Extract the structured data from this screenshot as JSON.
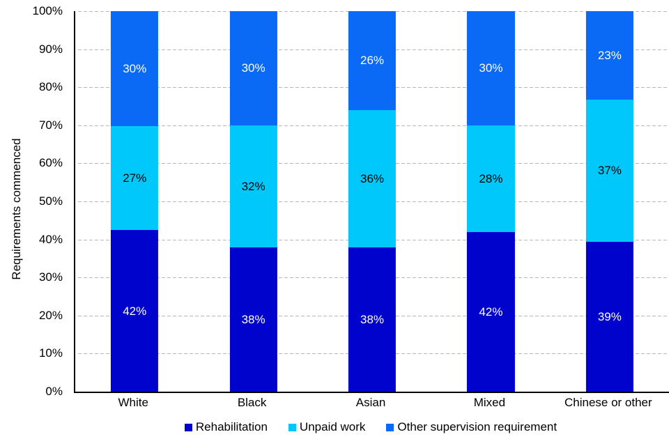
{
  "chart_data": {
    "type": "bar",
    "stacked": true,
    "orientation": "vertical",
    "title": "",
    "xlabel": "",
    "ylabel": "Requirements commenced",
    "categories": [
      "White",
      "Black",
      "Asian",
      "Mixed",
      "Chinese or other"
    ],
    "series": [
      {
        "name": "Rehabilitation",
        "color": "#0003cc",
        "label_color": "#ffffff",
        "values": [
          42,
          38,
          38,
          42,
          39
        ]
      },
      {
        "name": "Unpaid work",
        "color": "#00c8fa",
        "label_color": "#000000",
        "values": [
          27,
          32,
          36,
          28,
          37
        ]
      },
      {
        "name": "Other supervision requirement",
        "color": "#0a6af5",
        "label_color": "#ffffff",
        "values": [
          30,
          30,
          26,
          30,
          23
        ]
      }
    ],
    "value_suffix": "%",
    "y_ticks": [
      "0%",
      "10%",
      "20%",
      "30%",
      "40%",
      "50%",
      "60%",
      "70%",
      "80%",
      "90%",
      "100%"
    ],
    "ylim": [
      0,
      100
    ],
    "grid": "horizontal-dashed",
    "gridline_color": "#b8b8b8",
    "axis_color": "#000000",
    "legend_position": "bottom"
  }
}
